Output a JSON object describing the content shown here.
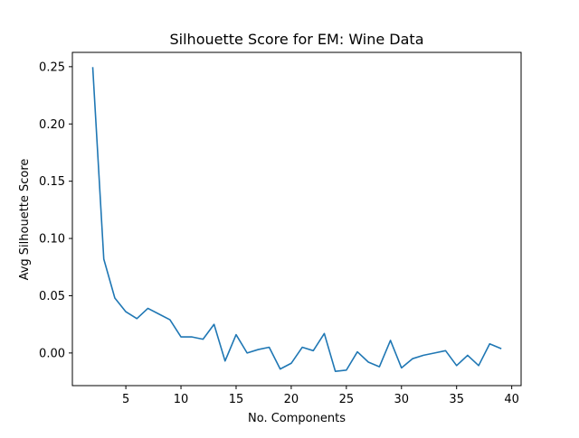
{
  "chart_data": {
    "type": "line",
    "title": "Silhouette Score for EM: Wine Data",
    "xlabel": "No. Components",
    "ylabel": "Avg Silhouette Score",
    "xlim": [
      0.15,
      40.85
    ],
    "ylim": [
      -0.0285,
      0.2625
    ],
    "xticks": [
      5,
      10,
      15,
      20,
      25,
      30,
      35,
      40
    ],
    "xtick_labels": [
      "5",
      "10",
      "15",
      "20",
      "25",
      "30",
      "35",
      "40"
    ],
    "yticks": [
      0.0,
      0.05,
      0.1,
      0.15,
      0.2,
      0.25
    ],
    "ytick_labels": [
      "0.00",
      "0.05",
      "0.10",
      "0.15",
      "0.20",
      "0.25"
    ],
    "grid": false,
    "series": [
      {
        "color": "#1f77b4",
        "x": [
          2,
          3,
          4,
          5,
          6,
          7,
          8,
          9,
          10,
          11,
          12,
          13,
          14,
          15,
          16,
          17,
          18,
          19,
          20,
          21,
          22,
          23,
          24,
          25,
          26,
          27,
          28,
          29,
          30,
          31,
          32,
          33,
          34,
          35,
          36,
          37,
          38,
          39
        ],
        "y": [
          0.249,
          0.082,
          0.048,
          0.036,
          0.03,
          0.039,
          0.034,
          0.029,
          0.014,
          0.014,
          0.012,
          0.025,
          -0.007,
          0.016,
          0.0,
          0.003,
          0.005,
          -0.014,
          -0.009,
          0.005,
          0.002,
          0.017,
          -0.016,
          -0.015,
          0.001,
          -0.008,
          -0.012,
          0.011,
          -0.013,
          -0.005,
          -0.002,
          0.0,
          0.002,
          -0.011,
          -0.002,
          -0.011,
          0.008,
          0.004
        ]
      }
    ]
  }
}
